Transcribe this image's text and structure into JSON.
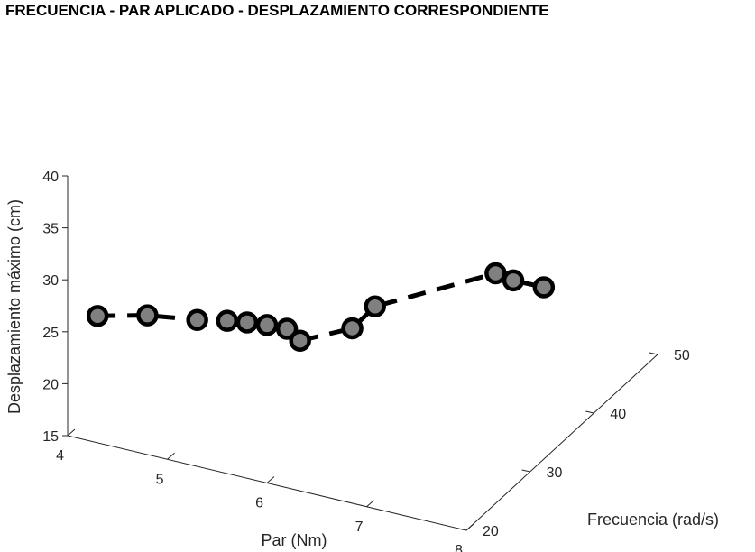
{
  "chart_data": {
    "type": "line3d",
    "title": "FRECUENCIA - PAR APLICADO - DESPLAZAMIENTO CORRESPONDIENTE",
    "xlabel": "Par (Nm)",
    "ylabel": "Frecuencia (rad/s)",
    "zlabel": "Desplazamiento máximo (cm)",
    "xlim": [
      4,
      8
    ],
    "ylim": [
      20,
      50
    ],
    "zlim": [
      15,
      40
    ],
    "x_ticks": [
      "4",
      "5",
      "6",
      "7",
      "8"
    ],
    "y_ticks": [
      "20",
      "30",
      "40",
      "50"
    ],
    "z_ticks": [
      "15",
      "20",
      "25",
      "30",
      "35",
      "40"
    ],
    "grid": false,
    "line_style": "dashed",
    "marker": "circle",
    "marker_face_color": "#808080",
    "marker_edge_color": "#000000",
    "line_color": "#000000",
    "points": [
      {
        "x": 4.3,
        "y": 20.0,
        "z": 27.2
      },
      {
        "x": 4.8,
        "y": 20.0,
        "z": 28.4
      },
      {
        "x": 5.3,
        "y": 20.0,
        "z": 29.1
      },
      {
        "x": 5.6,
        "y": 20.0,
        "z": 29.7
      },
      {
        "x": 5.8,
        "y": 20.0,
        "z": 30.0
      },
      {
        "x": 6.0,
        "y": 20.0,
        "z": 30.2
      },
      {
        "x": 6.2,
        "y": 20.0,
        "z": 30.3
      },
      {
        "x": 6.3,
        "y": 20.5,
        "z": 29.1
      },
      {
        "x": 6.6,
        "y": 24.0,
        "z": 29.0
      },
      {
        "x": 6.7,
        "y": 26.0,
        "z": 30.2
      },
      {
        "x": 6.95,
        "y": 41.0,
        "z": 25.5
      },
      {
        "x": 7.0,
        "y": 43.0,
        "z": 23.8
      },
      {
        "x": 7.05,
        "y": 47.0,
        "z": 21.0
      }
    ]
  }
}
